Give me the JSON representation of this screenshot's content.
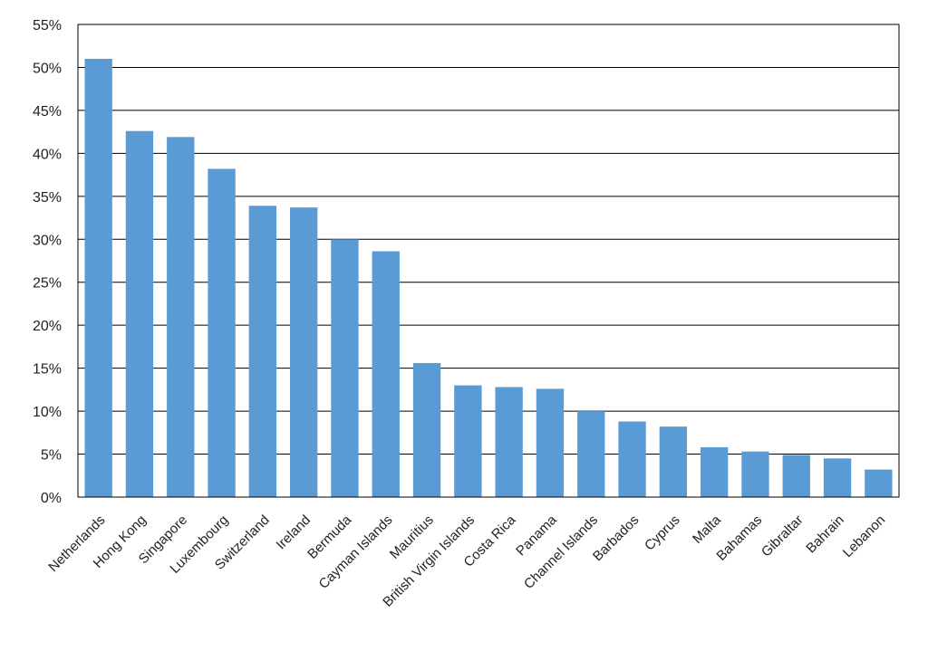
{
  "chart_data": {
    "type": "bar",
    "categories": [
      "Netherlands",
      "Hong Kong",
      "Singapore",
      "Luxembourg",
      "Switzerland",
      "Ireland",
      "Bermuda",
      "Cayman Islands",
      "Mauritius",
      "British Virgin Islands",
      "Costa Rica",
      "Panama",
      "Channel Islands",
      "Barbados",
      "Cyprus",
      "Malta",
      "Bahamas",
      "Gibraltar",
      "Bahrain",
      "Lebanon"
    ],
    "values": [
      51.0,
      42.6,
      41.9,
      38.2,
      33.9,
      33.7,
      30.0,
      28.6,
      15.6,
      13.0,
      12.8,
      12.6,
      10.0,
      8.8,
      8.2,
      5.8,
      5.3,
      4.9,
      4.5,
      3.2
    ],
    "y_ticks": [
      "0%",
      "5%",
      "10%",
      "15%",
      "20%",
      "25%",
      "30%",
      "35%",
      "40%",
      "45%",
      "50%",
      "55%"
    ],
    "ylim": [
      0,
      55
    ],
    "grid": true,
    "bar_color": "#5b9bd5",
    "title": "",
    "xlabel": "",
    "ylabel": ""
  }
}
